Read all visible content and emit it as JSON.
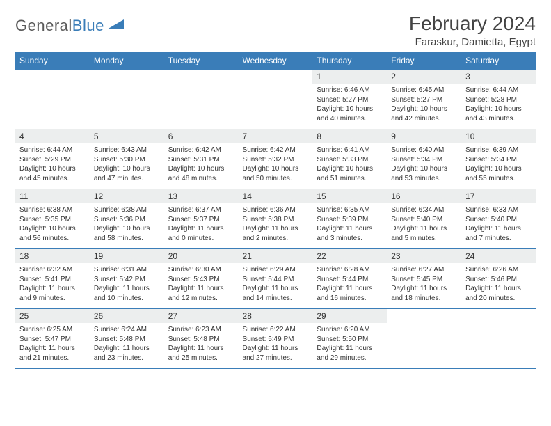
{
  "brand": {
    "part1": "General",
    "part2": "Blue"
  },
  "title": "February 2024",
  "location": "Faraskur, Damietta, Egypt",
  "colors": {
    "header_bg": "#3a7db8",
    "header_fg": "#ffffff",
    "daynum_bg": "#eceeee",
    "border": "#3a7db8",
    "text": "#333333",
    "brand_gray": "#5a5a5a",
    "brand_blue": "#3a7db8"
  },
  "weekdays": [
    "Sunday",
    "Monday",
    "Tuesday",
    "Wednesday",
    "Thursday",
    "Friday",
    "Saturday"
  ],
  "weeks": [
    [
      null,
      null,
      null,
      null,
      {
        "d": "1",
        "sr": "6:46 AM",
        "ss": "5:27 PM",
        "dl": "10 hours and 40 minutes."
      },
      {
        "d": "2",
        "sr": "6:45 AM",
        "ss": "5:27 PM",
        "dl": "10 hours and 42 minutes."
      },
      {
        "d": "3",
        "sr": "6:44 AM",
        "ss": "5:28 PM",
        "dl": "10 hours and 43 minutes."
      }
    ],
    [
      {
        "d": "4",
        "sr": "6:44 AM",
        "ss": "5:29 PM",
        "dl": "10 hours and 45 minutes."
      },
      {
        "d": "5",
        "sr": "6:43 AM",
        "ss": "5:30 PM",
        "dl": "10 hours and 47 minutes."
      },
      {
        "d": "6",
        "sr": "6:42 AM",
        "ss": "5:31 PM",
        "dl": "10 hours and 48 minutes."
      },
      {
        "d": "7",
        "sr": "6:42 AM",
        "ss": "5:32 PM",
        "dl": "10 hours and 50 minutes."
      },
      {
        "d": "8",
        "sr": "6:41 AM",
        "ss": "5:33 PM",
        "dl": "10 hours and 51 minutes."
      },
      {
        "d": "9",
        "sr": "6:40 AM",
        "ss": "5:34 PM",
        "dl": "10 hours and 53 minutes."
      },
      {
        "d": "10",
        "sr": "6:39 AM",
        "ss": "5:34 PM",
        "dl": "10 hours and 55 minutes."
      }
    ],
    [
      {
        "d": "11",
        "sr": "6:38 AM",
        "ss": "5:35 PM",
        "dl": "10 hours and 56 minutes."
      },
      {
        "d": "12",
        "sr": "6:38 AM",
        "ss": "5:36 PM",
        "dl": "10 hours and 58 minutes."
      },
      {
        "d": "13",
        "sr": "6:37 AM",
        "ss": "5:37 PM",
        "dl": "11 hours and 0 minutes."
      },
      {
        "d": "14",
        "sr": "6:36 AM",
        "ss": "5:38 PM",
        "dl": "11 hours and 2 minutes."
      },
      {
        "d": "15",
        "sr": "6:35 AM",
        "ss": "5:39 PM",
        "dl": "11 hours and 3 minutes."
      },
      {
        "d": "16",
        "sr": "6:34 AM",
        "ss": "5:40 PM",
        "dl": "11 hours and 5 minutes."
      },
      {
        "d": "17",
        "sr": "6:33 AM",
        "ss": "5:40 PM",
        "dl": "11 hours and 7 minutes."
      }
    ],
    [
      {
        "d": "18",
        "sr": "6:32 AM",
        "ss": "5:41 PM",
        "dl": "11 hours and 9 minutes."
      },
      {
        "d": "19",
        "sr": "6:31 AM",
        "ss": "5:42 PM",
        "dl": "11 hours and 10 minutes."
      },
      {
        "d": "20",
        "sr": "6:30 AM",
        "ss": "5:43 PM",
        "dl": "11 hours and 12 minutes."
      },
      {
        "d": "21",
        "sr": "6:29 AM",
        "ss": "5:44 PM",
        "dl": "11 hours and 14 minutes."
      },
      {
        "d": "22",
        "sr": "6:28 AM",
        "ss": "5:44 PM",
        "dl": "11 hours and 16 minutes."
      },
      {
        "d": "23",
        "sr": "6:27 AM",
        "ss": "5:45 PM",
        "dl": "11 hours and 18 minutes."
      },
      {
        "d": "24",
        "sr": "6:26 AM",
        "ss": "5:46 PM",
        "dl": "11 hours and 20 minutes."
      }
    ],
    [
      {
        "d": "25",
        "sr": "6:25 AM",
        "ss": "5:47 PM",
        "dl": "11 hours and 21 minutes."
      },
      {
        "d": "26",
        "sr": "6:24 AM",
        "ss": "5:48 PM",
        "dl": "11 hours and 23 minutes."
      },
      {
        "d": "27",
        "sr": "6:23 AM",
        "ss": "5:48 PM",
        "dl": "11 hours and 25 minutes."
      },
      {
        "d": "28",
        "sr": "6:22 AM",
        "ss": "5:49 PM",
        "dl": "11 hours and 27 minutes."
      },
      {
        "d": "29",
        "sr": "6:20 AM",
        "ss": "5:50 PM",
        "dl": "11 hours and 29 minutes."
      },
      null,
      null
    ]
  ],
  "labels": {
    "sunrise": "Sunrise: ",
    "sunset": "Sunset: ",
    "daylight": "Daylight: "
  }
}
